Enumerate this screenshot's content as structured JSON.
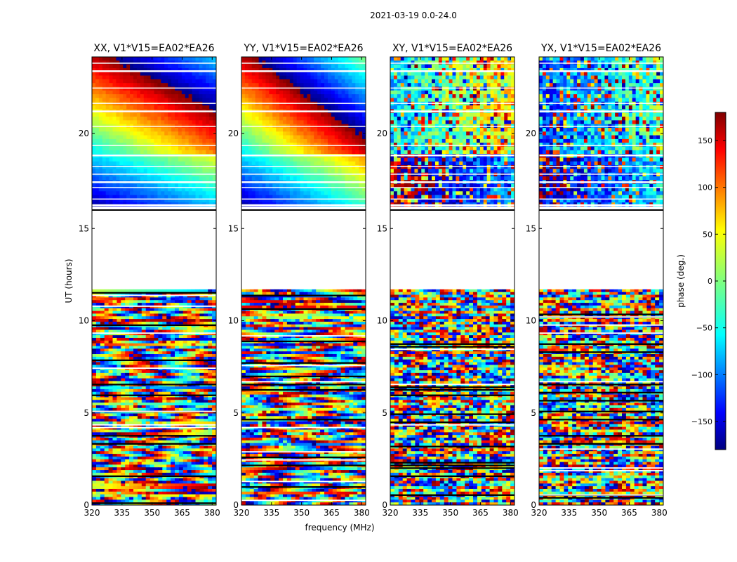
{
  "chart_data": {
    "type": "heatmap",
    "suptitle": "2021-03-19 0.0-24.0",
    "xlabel": "frequency (MHz)",
    "ylabel": "UT (hours)",
    "colorbar": {
      "label": "phase (deg.)",
      "range": [
        -180,
        180
      ],
      "ticks": [
        150,
        100,
        50,
        0,
        -50,
        -100,
        -150
      ],
      "tick_labels": [
        "150",
        "100",
        "50",
        "0",
        "−50",
        "−100",
        "−150"
      ],
      "colormap": "jet",
      "stops": [
        "#00007f",
        "#0000ff",
        "#007fff",
        "#00ffff",
        "#7fff7f",
        "#ffff00",
        "#ff7f00",
        "#ff0000",
        "#7f0000"
      ]
    },
    "panels": [
      {
        "title": "XX, V1*V15=EA02*EA26"
      },
      {
        "title": "YY, V1*V15=EA02*EA26"
      },
      {
        "title": "XY, V1*V15=EA02*EA26"
      },
      {
        "title": "YX, V1*V15=EA02*EA26"
      }
    ],
    "x_ticks": [
      320,
      335,
      350,
      365,
      380
    ],
    "x_range": [
      320,
      382
    ],
    "y_upper": {
      "range": [
        16,
        24
      ],
      "ticks": [
        20
      ],
      "tick_labels": [
        "20"
      ]
    },
    "y_lower": {
      "range": [
        0,
        16
      ],
      "ticks": [
        15,
        10,
        5,
        0
      ],
      "tick_labels": [
        "15",
        "10",
        "5",
        "0"
      ]
    },
    "data_regions_ut": {
      "wrapping_lower": [
        0,
        11.7
      ],
      "gap": [
        11.7,
        16
      ],
      "smooth_upper": [
        16.2,
        24
      ]
    }
  }
}
